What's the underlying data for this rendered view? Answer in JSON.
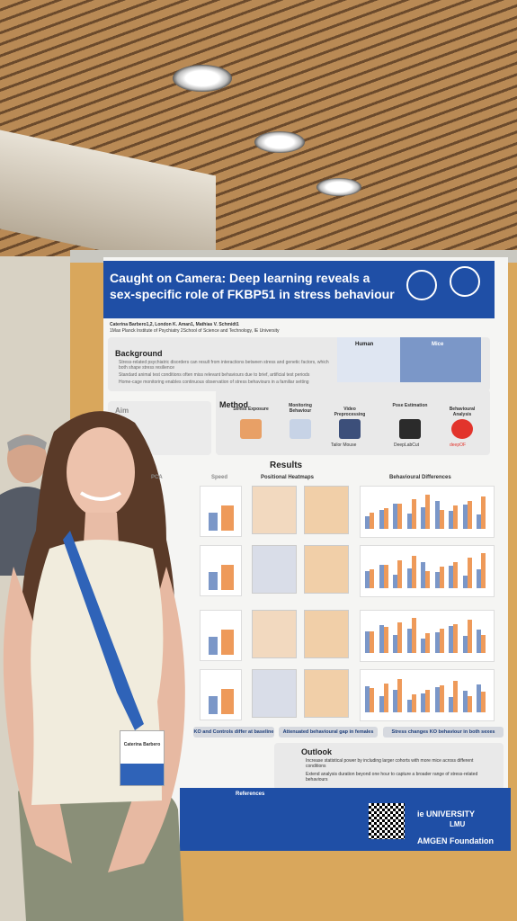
{
  "poster": {
    "title_lines": [
      "Caught on Camera: Deep learning reveals a",
      "sex-specific role of FKBP51 in stress behaviour"
    ],
    "authors": "Caterina Barbero1,2, London K. Aman1, Mathias V. Schmidt1",
    "affiliation": "1Max Planck Institute of Psychiatry 2School of Science and Technology, IE University",
    "background": {
      "heading": "Background",
      "bullets": [
        "Stress-related psychiatric disorders can result from interactions between stress and genetic factors, which both shape stress resilience",
        "Standard animal test conditions often miss relevant behaviours due to brief, artificial test periods",
        "Home-cage monitoring enables continuous observation of stress behaviours in a familiar setting"
      ],
      "human": "Human",
      "mice": "Mice"
    },
    "aim": {
      "heading": "Aim"
    },
    "method": {
      "heading": "Method",
      "steps": [
        "Stress Exposure",
        "Monitoring Behaviour",
        "Video Preprocessing",
        "Pose Estimation",
        "Behavioural Analysis"
      ],
      "tools": [
        "Tailor Mouse",
        "DeepLabCut",
        "deepOF"
      ]
    },
    "results": {
      "heading": "Results",
      "columns": [
        "PCA",
        "Speed",
        "Positional Heatmaps",
        "Behavioural Differences"
      ],
      "findings": [
        "KO and Controls differ at baseline",
        "Attenuated behavioural gap in females",
        "Stress changes KO behaviour in both sexes"
      ]
    },
    "outlook": {
      "heading": "Outlook",
      "bullets": [
        "Increase statistical power by including larger cohorts with more mice across different conditions",
        "Extend analysis duration beyond one hour to capture a broader range of stress-related behaviours"
      ]
    },
    "references": {
      "heading": "References"
    },
    "logos": [
      "ie UNIVERSITY",
      "LMU",
      "AMGEN Foundation"
    ]
  },
  "badge": {
    "name": "Caterina Barbero"
  }
}
